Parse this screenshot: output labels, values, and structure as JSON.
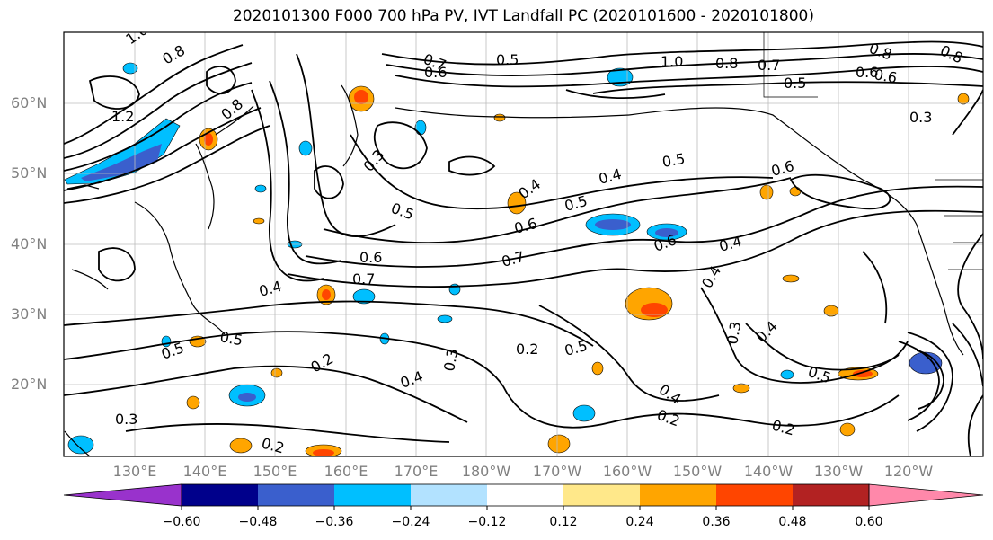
{
  "title": "2020101300 F000 700 hPa PV, IVT Landfall PC (2020101600 - 2020101800)",
  "lat_labels": [
    "60°N",
    "50°N",
    "40°N",
    "30°N",
    "20°N"
  ],
  "lon_labels": [
    "130°E",
    "140°E",
    "150°E",
    "160°E",
    "170°E",
    "180°W",
    "170°W",
    "160°W",
    "150°W",
    "140°W",
    "130°W",
    "120°W"
  ],
  "contour_labels": [
    "1.0",
    "0.8",
    "0.7",
    "0.5",
    "0.6",
    "0.6",
    "1.0",
    "0.8",
    "0.7",
    "0.5",
    "0.6",
    "0.8",
    "0.8",
    "0.3",
    "1.2",
    "0.8",
    "0.3",
    "0.5",
    "0.4",
    "0.4",
    "0.5",
    "0.6",
    "0.7",
    "0.6",
    "0.6",
    "0.4",
    "0.6",
    "0.5",
    "0.4",
    "0.7",
    "0.4",
    "0.3",
    "0.5",
    "0.2",
    "0.2",
    "0.5",
    "0.4",
    "0.3",
    "0.2",
    "0.5",
    "0.4",
    "0.2",
    "0.2",
    "0.5",
    "0.3",
    "0.4"
  ],
  "colorbar": {
    "colors": [
      "#9932cc",
      "#00008b",
      "#3a5fcd",
      "#00bfff",
      "#b2e2ff",
      "#ffffff",
      "#ffe88a",
      "#ffa500",
      "#ff4500",
      "#b22222",
      "#ff88aa"
    ],
    "tick_labels": [
      "−0.60",
      "−0.48",
      "−0.36",
      "−0.24",
      "−0.12",
      "0.12",
      "0.24",
      "0.36",
      "0.48",
      "0.60"
    ]
  }
}
